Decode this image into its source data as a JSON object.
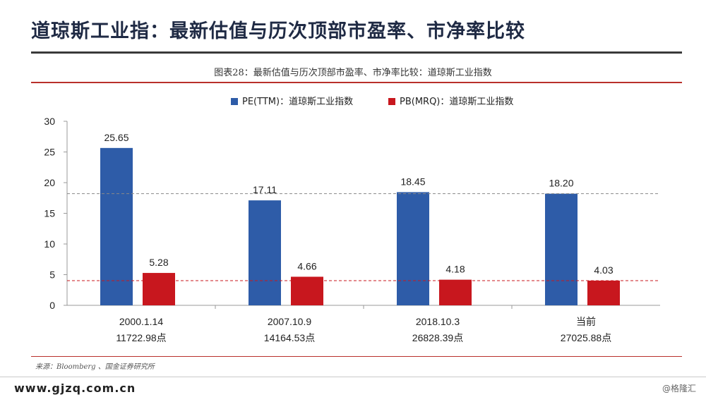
{
  "page": {
    "title": "道琼斯工业指：最新估值与历次顶部市盈率、市净率比较",
    "figure_title": "图表28：最新估值与历次顶部市盈率、市净率比较：道琼斯工业指数",
    "source": "来源：Bloomberg 、国金证券研究所",
    "website": "www.gjzq.com.cn",
    "watermark": "@格隆汇"
  },
  "chart_data": {
    "type": "bar",
    "title": "",
    "categories": [
      "2000.1.14",
      "2007.10.9",
      "2018.10.3",
      "当前"
    ],
    "sublabels": [
      "11722.98点",
      "14164.53点",
      "26828.39点",
      "27025.88点"
    ],
    "series": [
      {
        "name": "PE(TTM)：道琼斯工业指数",
        "color": "#2e5ca8",
        "values": [
          25.65,
          17.11,
          18.45,
          18.2
        ],
        "labels": [
          "25.65",
          "17.11",
          "18.45",
          "18.20"
        ]
      },
      {
        "name": "PB(MRQ)：道琼斯工业指数",
        "color": "#c8171e",
        "values": [
          5.28,
          4.66,
          4.18,
          4.03
        ],
        "labels": [
          "5.28",
          "4.66",
          "4.18",
          "4.03"
        ]
      }
    ],
    "ylim": [
      0,
      30
    ],
    "yticks": [
      "0",
      "5",
      "10",
      "15",
      "20",
      "25",
      "30"
    ],
    "reference_lines": [
      {
        "value": 18.2,
        "color": "#888888"
      },
      {
        "value": 4.03,
        "color": "#c8171e"
      }
    ],
    "xlabel": "",
    "ylabel": "",
    "legend": "top-center",
    "grid": false
  }
}
